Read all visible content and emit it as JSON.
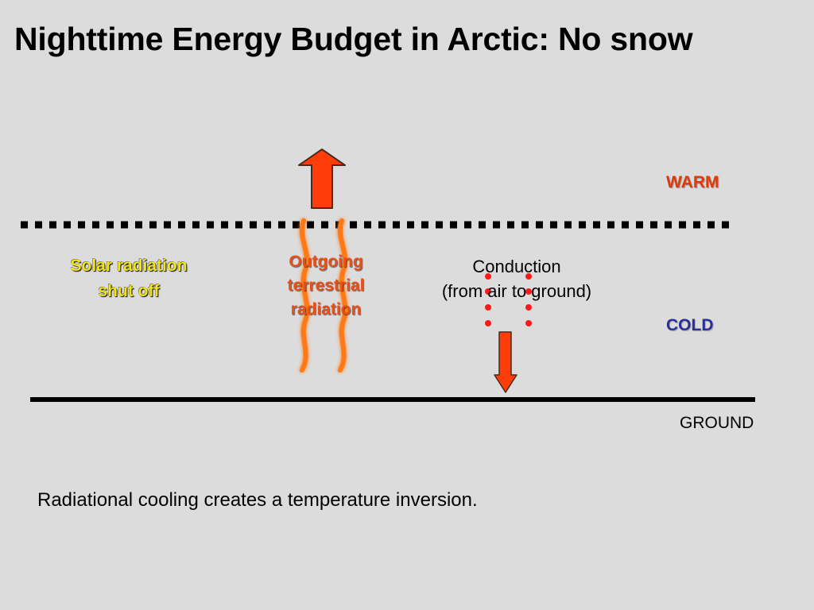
{
  "title": "Nighttime Energy Budget in Arctic: No snow",
  "labels": {
    "warm": "WARM",
    "cold": "COLD",
    "ground": "GROUND",
    "solar_line1": "Solar radiation",
    "solar_line2": "shut off",
    "outgoing_line1": "Outgoing",
    "outgoing_line2": "terrestrial",
    "outgoing_line3": "radiation",
    "conduction_line1": "Conduction",
    "conduction_line2": "(from air to ground)"
  },
  "caption": "Radiational cooling creates a temperature inversion.",
  "colors": {
    "background": "#dcdcdc",
    "arrow_fill": "#ff3d0a",
    "wave_color": "#ff7a14",
    "dot_color": "#ff1a1a",
    "warm_text": "#e03a0c",
    "cold_text": "#2a2f9a",
    "solar_text": "#f2e61a"
  },
  "icons": {
    "up_arrow": "up-arrow-icon",
    "down_arrow": "down-arrow-icon",
    "wavy_lines": "heat-wave-icon"
  }
}
